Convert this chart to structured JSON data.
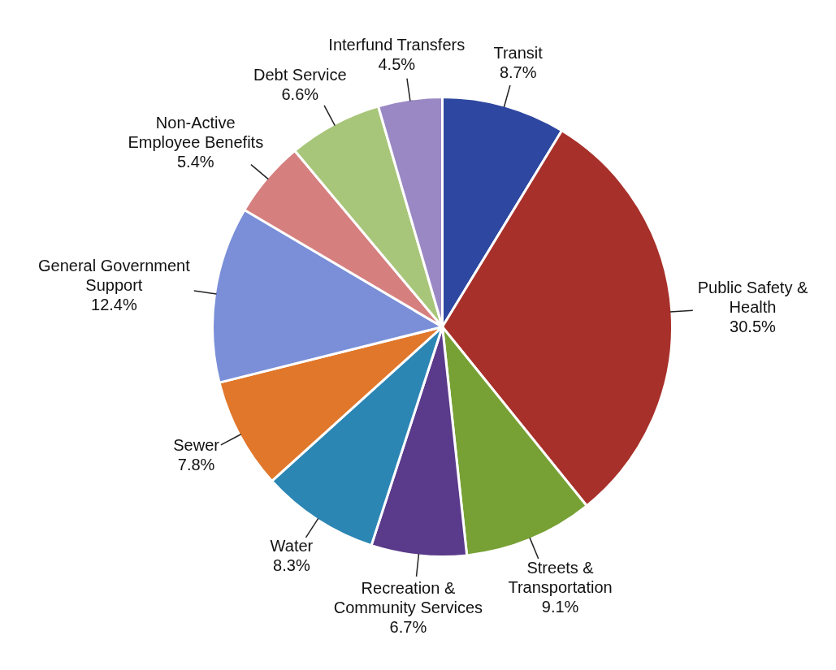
{
  "chart_data": {
    "type": "pie",
    "categories": [
      "Transit",
      "Public Safety &\nHealth",
      "Streets &\nTransportation",
      "Recreation &\nCommunity Services",
      "Water",
      "Sewer",
      "General Government\nSupport",
      "Non-Active\nEmployee Benefits",
      "Debt Service",
      "Interfund Transfers"
    ],
    "values": [
      8.7,
      30.5,
      9.1,
      6.7,
      8.3,
      7.8,
      12.4,
      5.4,
      6.6,
      4.5
    ],
    "value_labels": [
      "8.7%",
      "30.5%",
      "9.1%",
      "6.7%",
      "8.3%",
      "7.8%",
      "12.4%",
      "5.4%",
      "6.6%",
      "4.5%"
    ],
    "colors": [
      "#2e47a0",
      "#a8302a",
      "#77a135",
      "#5a3a8a",
      "#2c86b4",
      "#e0772b",
      "#7a8fd8",
      "#d67f7f",
      "#a8c67a",
      "#9a88c4"
    ],
    "legend": false
  }
}
